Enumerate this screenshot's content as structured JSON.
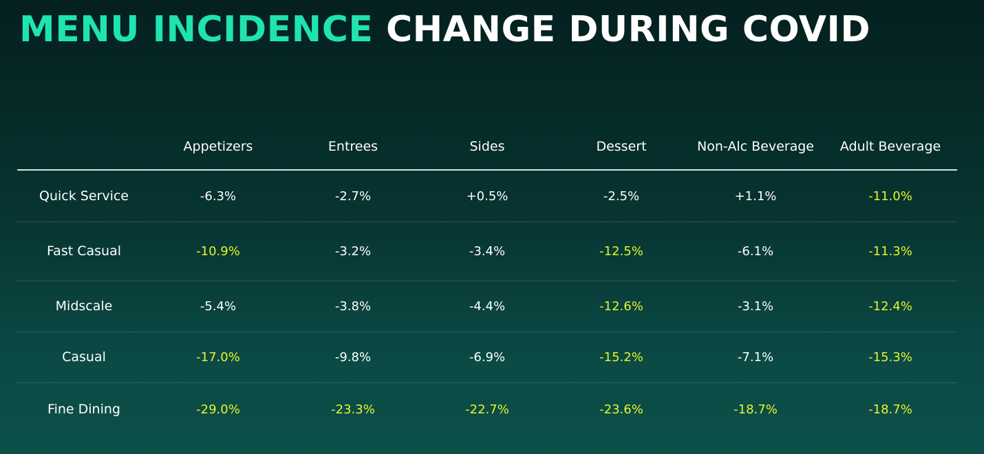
{
  "title": {
    "accent": "MENU INCIDENCE",
    "rest": "CHANGE DURING COVID"
  },
  "colors": {
    "accent": "#20e3b2",
    "highlight": "#e6f52b",
    "normal": "#ffffff"
  },
  "chart_data": {
    "type": "table",
    "columns": [
      "Appetizers",
      "Entrees",
      "Sides",
      "Dessert",
      "Non-Alc Beverage",
      "Adult Beverage"
    ],
    "rows": [
      {
        "label": "Quick Service",
        "values": [
          "-6.3%",
          "-2.7%",
          "+0.5%",
          "-2.5%",
          "+1.1%",
          "-11.0%"
        ],
        "highlight": [
          false,
          false,
          false,
          false,
          false,
          true
        ]
      },
      {
        "label": "Fast Casual",
        "values": [
          "-10.9%",
          "-3.2%",
          "-3.4%",
          "-12.5%",
          "-6.1%",
          "-11.3%"
        ],
        "highlight": [
          true,
          false,
          false,
          true,
          false,
          true
        ]
      },
      {
        "label": "Midscale",
        "values": [
          "-5.4%",
          "-3.8%",
          "-4.4%",
          "-12.6%",
          "-3.1%",
          "-12.4%"
        ],
        "highlight": [
          false,
          false,
          false,
          true,
          false,
          true
        ]
      },
      {
        "label": "Casual",
        "values": [
          "-17.0%",
          "-9.8%",
          "-6.9%",
          "-15.2%",
          "-7.1%",
          "-15.3%"
        ],
        "highlight": [
          true,
          false,
          false,
          true,
          false,
          true
        ]
      },
      {
        "label": "Fine Dining",
        "values": [
          "-29.0%",
          "-23.3%",
          "-22.7%",
          "-23.6%",
          "-18.7%",
          "-18.7%"
        ],
        "highlight": [
          true,
          true,
          true,
          true,
          true,
          true
        ]
      }
    ]
  }
}
